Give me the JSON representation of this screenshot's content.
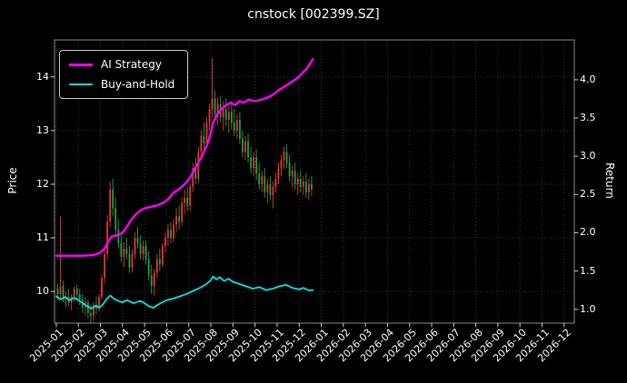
{
  "colors": {
    "background": "#000000",
    "text": "#ffffff",
    "grid": "#3a3a3a",
    "frame": "#888888",
    "tick": "#cccccc"
  },
  "chart_data": {
    "type": "candlestick",
    "title": "cnstock [002399.SZ]",
    "legend_position": "upper-left",
    "grid": true,
    "x_axis": {
      "unit": "month",
      "labels": [
        "2025-01",
        "2025-02",
        "2025-03",
        "2025-04",
        "2025-05",
        "2025-06",
        "2025-07",
        "2025-08",
        "2025-09",
        "2025-10",
        "2025-11",
        "2025-12",
        "2026-01",
        "2026-02",
        "2026-03",
        "2026-04",
        "2026-05",
        "2026-06",
        "2026-07",
        "2026-08",
        "2026-09",
        "2026-10",
        "2026-11",
        "2026-12"
      ],
      "range_months": [
        -0.08,
        23.46
      ]
    },
    "y_left": {
      "label": "Price",
      "ticks": [
        10,
        11,
        12,
        13,
        14
      ],
      "range": [
        9.41,
        14.69
      ]
    },
    "y_right": {
      "label": "Return",
      "ticks": [
        1.0,
        1.5,
        2.0,
        2.5,
        3.0,
        3.5,
        4.0
      ],
      "range": [
        0.82,
        4.52
      ]
    },
    "candles": {
      "name": "Daily OHLC price",
      "axis": "left",
      "up_color": "#e8382c",
      "down_color": "#1fa24a",
      "t_start": 0.0625,
      "t_step": 0.125,
      "data": [
        [
          10.05,
          10.15,
          9.85,
          9.95
        ],
        [
          9.95,
          11.4,
          9.88,
          10.1
        ],
        [
          10.1,
          10.2,
          9.8,
          9.85
        ],
        [
          9.85,
          10.0,
          9.7,
          9.9
        ],
        [
          9.9,
          10.05,
          9.72,
          9.8
        ],
        [
          9.8,
          9.95,
          9.65,
          9.9
        ],
        [
          9.9,
          10.1,
          9.8,
          10.05
        ],
        [
          10.05,
          10.12,
          9.85,
          9.95
        ],
        [
          9.95,
          10.05,
          9.75,
          9.85
        ],
        [
          9.85,
          9.95,
          9.6,
          9.7
        ],
        [
          9.7,
          9.9,
          9.55,
          9.8
        ],
        [
          9.8,
          9.85,
          9.5,
          9.6
        ],
        [
          9.6,
          9.75,
          9.4,
          9.55
        ],
        [
          9.55,
          9.8,
          9.45,
          9.75
        ],
        [
          9.75,
          9.9,
          9.58,
          9.68
        ],
        [
          9.68,
          9.95,
          9.62,
          9.9
        ],
        [
          9.9,
          10.32,
          9.85,
          10.25
        ],
        [
          10.25,
          10.8,
          10.15,
          10.7
        ],
        [
          10.7,
          11.42,
          10.6,
          11.3
        ],
        [
          11.3,
          12.05,
          11.2,
          11.9
        ],
        [
          11.9,
          12.1,
          11.4,
          11.55
        ],
        [
          11.55,
          11.75,
          11.05,
          11.15
        ],
        [
          11.15,
          11.35,
          10.8,
          10.9
        ],
        [
          10.9,
          11.05,
          10.55,
          10.65
        ],
        [
          10.65,
          10.92,
          10.45,
          10.8
        ],
        [
          10.8,
          11.0,
          10.6,
          10.7
        ],
        [
          10.7,
          10.85,
          10.35,
          10.45
        ],
        [
          10.45,
          10.78,
          10.35,
          10.7
        ],
        [
          10.7,
          11.1,
          10.6,
          11.0
        ],
        [
          11.0,
          11.2,
          10.8,
          10.9
        ],
        [
          10.9,
          11.05,
          10.6,
          10.7
        ],
        [
          10.7,
          10.95,
          10.58,
          10.85
        ],
        [
          10.85,
          10.95,
          10.5,
          10.6
        ],
        [
          10.6,
          10.75,
          10.2,
          10.3
        ],
        [
          10.3,
          10.5,
          9.95,
          10.1
        ],
        [
          10.1,
          10.42,
          9.92,
          10.35
        ],
        [
          10.35,
          10.7,
          10.25,
          10.6
        ],
        [
          10.6,
          10.8,
          10.38,
          10.5
        ],
        [
          10.5,
          10.9,
          10.45,
          10.85
        ],
        [
          10.85,
          11.1,
          10.72,
          11.0
        ],
        [
          11.0,
          11.25,
          10.85,
          11.15
        ],
        [
          11.15,
          11.3,
          10.9,
          11.0
        ],
        [
          11.0,
          11.35,
          10.92,
          11.25
        ],
        [
          11.25,
          11.55,
          11.1,
          11.4
        ],
        [
          11.4,
          11.6,
          11.15,
          11.3
        ],
        [
          11.3,
          11.75,
          11.22,
          11.65
        ],
        [
          11.65,
          11.9,
          11.45,
          11.75
        ],
        [
          11.75,
          11.95,
          11.5,
          11.6
        ],
        [
          11.6,
          12.0,
          11.5,
          11.95
        ],
        [
          11.95,
          12.4,
          11.85,
          12.3
        ],
        [
          12.3,
          12.5,
          12.0,
          12.1
        ],
        [
          12.1,
          12.7,
          12.02,
          12.6
        ],
        [
          12.6,
          13.0,
          12.45,
          12.9
        ],
        [
          12.9,
          13.15,
          12.6,
          12.75
        ],
        [
          12.75,
          13.25,
          12.68,
          13.15
        ],
        [
          13.15,
          13.5,
          13.0,
          13.4
        ],
        [
          13.4,
          14.35,
          13.25,
          13.6
        ],
        [
          13.6,
          13.75,
          13.18,
          13.3
        ],
        [
          13.3,
          13.62,
          13.1,
          13.5
        ],
        [
          13.5,
          13.65,
          13.15,
          13.25
        ],
        [
          13.25,
          13.55,
          13.0,
          13.4
        ],
        [
          13.4,
          13.6,
          13.08,
          13.2
        ],
        [
          13.2,
          13.52,
          12.95,
          13.35
        ],
        [
          13.35,
          13.55,
          13.02,
          13.15
        ],
        [
          13.15,
          13.4,
          12.9,
          13.0
        ],
        [
          13.0,
          13.3,
          12.85,
          13.2
        ],
        [
          13.2,
          13.35,
          12.75,
          12.85
        ],
        [
          12.85,
          13.0,
          12.5,
          12.6
        ],
        [
          12.6,
          12.9,
          12.45,
          12.8
        ],
        [
          12.8,
          12.95,
          12.4,
          12.5
        ],
        [
          12.5,
          12.7,
          12.2,
          12.3
        ],
        [
          12.3,
          12.6,
          12.15,
          12.5
        ],
        [
          12.5,
          12.65,
          12.08,
          12.2
        ],
        [
          12.2,
          12.4,
          11.9,
          12.0
        ],
        [
          12.0,
          12.25,
          11.85,
          12.15
        ],
        [
          12.15,
          12.3,
          11.75,
          11.85
        ],
        [
          11.85,
          12.1,
          11.65,
          12.0
        ],
        [
          12.0,
          12.15,
          11.7,
          11.8
        ],
        [
          11.8,
          12.05,
          11.55,
          11.95
        ],
        [
          11.95,
          12.2,
          11.85,
          12.1
        ],
        [
          12.1,
          12.4,
          12.0,
          12.3
        ],
        [
          12.3,
          12.55,
          12.15,
          12.45
        ],
        [
          12.45,
          12.7,
          12.28,
          12.6
        ],
        [
          12.6,
          12.75,
          12.3,
          12.4
        ],
        [
          12.4,
          12.55,
          12.05,
          12.15
        ],
        [
          12.15,
          12.35,
          11.95,
          12.25
        ],
        [
          12.25,
          12.4,
          11.9,
          12.0
        ],
        [
          12.0,
          12.2,
          11.8,
          12.1
        ],
        [
          12.1,
          12.25,
          11.85,
          11.95
        ],
        [
          11.95,
          12.15,
          11.8,
          12.05
        ],
        [
          12.05,
          12.2,
          11.75,
          11.85
        ],
        [
          11.85,
          12.1,
          11.7,
          12.0
        ],
        [
          12.0,
          12.15,
          11.78,
          11.9
        ]
      ]
    },
    "series": [
      {
        "name": "AI Strategy",
        "axis": "right",
        "color": "#ff00ff",
        "line_width": 2.4,
        "points": [
          [
            0.0,
            1.7
          ],
          [
            0.6,
            1.7
          ],
          [
            1.2,
            1.7
          ],
          [
            1.7,
            1.71
          ],
          [
            2.0,
            1.74
          ],
          [
            2.2,
            1.8
          ],
          [
            2.35,
            1.88
          ],
          [
            2.5,
            1.95
          ],
          [
            2.8,
            1.97
          ],
          [
            3.0,
            2.0
          ],
          [
            3.2,
            2.08
          ],
          [
            3.4,
            2.17
          ],
          [
            3.6,
            2.24
          ],
          [
            3.8,
            2.29
          ],
          [
            4.0,
            2.32
          ],
          [
            4.3,
            2.34
          ],
          [
            4.6,
            2.36
          ],
          [
            4.9,
            2.4
          ],
          [
            5.1,
            2.45
          ],
          [
            5.3,
            2.52
          ],
          [
            5.6,
            2.58
          ],
          [
            5.9,
            2.66
          ],
          [
            6.1,
            2.74
          ],
          [
            6.3,
            2.85
          ],
          [
            6.6,
            3.0
          ],
          [
            6.85,
            3.16
          ],
          [
            7.0,
            3.3
          ],
          [
            7.1,
            3.44
          ],
          [
            7.3,
            3.55
          ],
          [
            7.5,
            3.62
          ],
          [
            7.7,
            3.67
          ],
          [
            7.9,
            3.7
          ],
          [
            8.1,
            3.67
          ],
          [
            8.3,
            3.72
          ],
          [
            8.5,
            3.7
          ],
          [
            8.7,
            3.74
          ],
          [
            9.0,
            3.72
          ],
          [
            9.3,
            3.74
          ],
          [
            9.6,
            3.77
          ],
          [
            9.9,
            3.82
          ],
          [
            10.1,
            3.87
          ],
          [
            10.4,
            3.92
          ],
          [
            10.6,
            3.96
          ],
          [
            10.8,
            4.0
          ],
          [
            11.0,
            4.04
          ],
          [
            11.15,
            4.09
          ],
          [
            11.3,
            4.13
          ],
          [
            11.45,
            4.19
          ],
          [
            11.62,
            4.27
          ]
        ]
      },
      {
        "name": "Buy-and-Hold",
        "axis": "right",
        "color": "#00e5e5",
        "line_width": 1.8,
        "points": [
          [
            0.0,
            1.17
          ],
          [
            0.2,
            1.13
          ],
          [
            0.4,
            1.16
          ],
          [
            0.6,
            1.12
          ],
          [
            0.8,
            1.15
          ],
          [
            1.0,
            1.12
          ],
          [
            1.2,
            1.08
          ],
          [
            1.4,
            1.04
          ],
          [
            1.6,
            1.01
          ],
          [
            1.8,
            1.05
          ],
          [
            1.95,
            1.02
          ],
          [
            2.1,
            1.06
          ],
          [
            2.3,
            1.14
          ],
          [
            2.45,
            1.18
          ],
          [
            2.6,
            1.14
          ],
          [
            2.8,
            1.11
          ],
          [
            3.0,
            1.09
          ],
          [
            3.2,
            1.12
          ],
          [
            3.5,
            1.08
          ],
          [
            3.8,
            1.11
          ],
          [
            4.0,
            1.08
          ],
          [
            4.2,
            1.04
          ],
          [
            4.4,
            1.02
          ],
          [
            4.6,
            1.06
          ],
          [
            4.8,
            1.09
          ],
          [
            5.0,
            1.12
          ],
          [
            5.3,
            1.14
          ],
          [
            5.6,
            1.17
          ],
          [
            5.9,
            1.2
          ],
          [
            6.2,
            1.24
          ],
          [
            6.5,
            1.28
          ],
          [
            6.8,
            1.33
          ],
          [
            7.0,
            1.38
          ],
          [
            7.1,
            1.43
          ],
          [
            7.25,
            1.39
          ],
          [
            7.4,
            1.42
          ],
          [
            7.6,
            1.37
          ],
          [
            7.8,
            1.4
          ],
          [
            8.0,
            1.36
          ],
          [
            8.3,
            1.33
          ],
          [
            8.6,
            1.3
          ],
          [
            8.9,
            1.27
          ],
          [
            9.2,
            1.29
          ],
          [
            9.5,
            1.25
          ],
          [
            9.8,
            1.27
          ],
          [
            10.1,
            1.3
          ],
          [
            10.4,
            1.32
          ],
          [
            10.7,
            1.28
          ],
          [
            11.0,
            1.26
          ],
          [
            11.2,
            1.28
          ],
          [
            11.4,
            1.25
          ],
          [
            11.62,
            1.25
          ]
        ]
      }
    ]
  }
}
